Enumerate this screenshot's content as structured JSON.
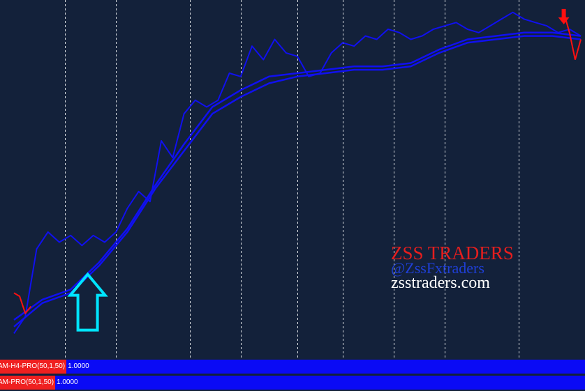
{
  "chart_data": {
    "type": "line",
    "title": "",
    "xlabel": "",
    "ylabel": "",
    "grid": "vertical dashed",
    "series": [
      {
        "role": "price",
        "color": "#1010f0",
        "x": [
          0,
          2,
          4,
          6,
          8,
          10,
          12,
          14,
          16,
          18,
          20,
          22,
          24,
          26,
          28,
          30,
          32,
          34,
          36,
          38,
          40,
          42,
          44,
          46,
          48,
          50,
          52,
          54,
          56,
          58,
          60,
          62,
          64,
          66,
          68,
          70,
          72,
          74,
          76,
          78,
          80,
          82,
          84,
          86,
          88,
          90,
          92,
          94,
          96,
          98,
          100
        ],
        "y": [
          3,
          8,
          28,
          33,
          30,
          32,
          29,
          32,
          30,
          33,
          40,
          45,
          42,
          60,
          55,
          68,
          72,
          70,
          72,
          80,
          79,
          88,
          84,
          90,
          86,
          85,
          79,
          80,
          86,
          89,
          88,
          91,
          90,
          93,
          92,
          90,
          91,
          93,
          94,
          95,
          93,
          92,
          94,
          96,
          98,
          96,
          95,
          94,
          92,
          93,
          91
        ]
      },
      {
        "role": "moving-average-fast",
        "color": "#1010f0",
        "x": [
          0,
          5,
          10,
          15,
          20,
          25,
          30,
          35,
          40,
          45,
          50,
          55,
          60,
          65,
          70,
          75,
          80,
          85,
          90,
          95,
          100
        ],
        "y": [
          7,
          13,
          16,
          24,
          34,
          47,
          59,
          70,
          75,
          79,
          80,
          81,
          82,
          82,
          83,
          87,
          90,
          91,
          92,
          92,
          91
        ]
      },
      {
        "role": "moving-average-slow",
        "color": "#1010f0",
        "x": [
          0,
          5,
          10,
          15,
          20,
          25,
          30,
          35,
          40,
          45,
          50,
          55,
          60,
          65,
          70,
          75,
          80,
          85,
          90,
          95,
          100
        ],
        "y": [
          5,
          12,
          15,
          23,
          33,
          46,
          57,
          68,
          73,
          77,
          79,
          80,
          81,
          81,
          82,
          86,
          89,
          90,
          91,
          91,
          90
        ]
      }
    ],
    "signal_segments": [
      {
        "side": "left",
        "color": "#ff1010",
        "x": [
          0,
          1,
          2,
          3
        ],
        "y": [
          15,
          14,
          9,
          11
        ]
      },
      {
        "side": "right",
        "color": "#ff1010",
        "x": [
          97,
          98,
          99,
          100
        ],
        "y": [
          98,
          92,
          84,
          90
        ]
      }
    ],
    "arrows": [
      {
        "direction": "up",
        "color": "#00e5ff",
        "x": 13,
        "y": 4
      },
      {
        "direction": "down",
        "color": "#ff1010",
        "x": 97,
        "y": 99
      }
    ],
    "xlim": [
      0,
      100
    ],
    "ylim": [
      0,
      100
    ],
    "vgrid_x": [
      9,
      18,
      31,
      40,
      50,
      58,
      67,
      76,
      89
    ]
  },
  "watermark": {
    "title": "ZSS TRADERS",
    "handle": "@ZssFxtraders",
    "site": "zsstraders.com"
  },
  "indicators": [
    {
      "name": "AM-H4-PRO(50,1,50)",
      "value": "1.0000"
    },
    {
      "name": "AM-PRO(50,1,50)",
      "value": "1.0000"
    }
  ],
  "colors": {
    "background": "#13213a",
    "grid": "#ffffff",
    "price_line": "#1010f0",
    "indicator_bar": "#0a0af5",
    "indicator_label_bg": "#ef2020"
  }
}
